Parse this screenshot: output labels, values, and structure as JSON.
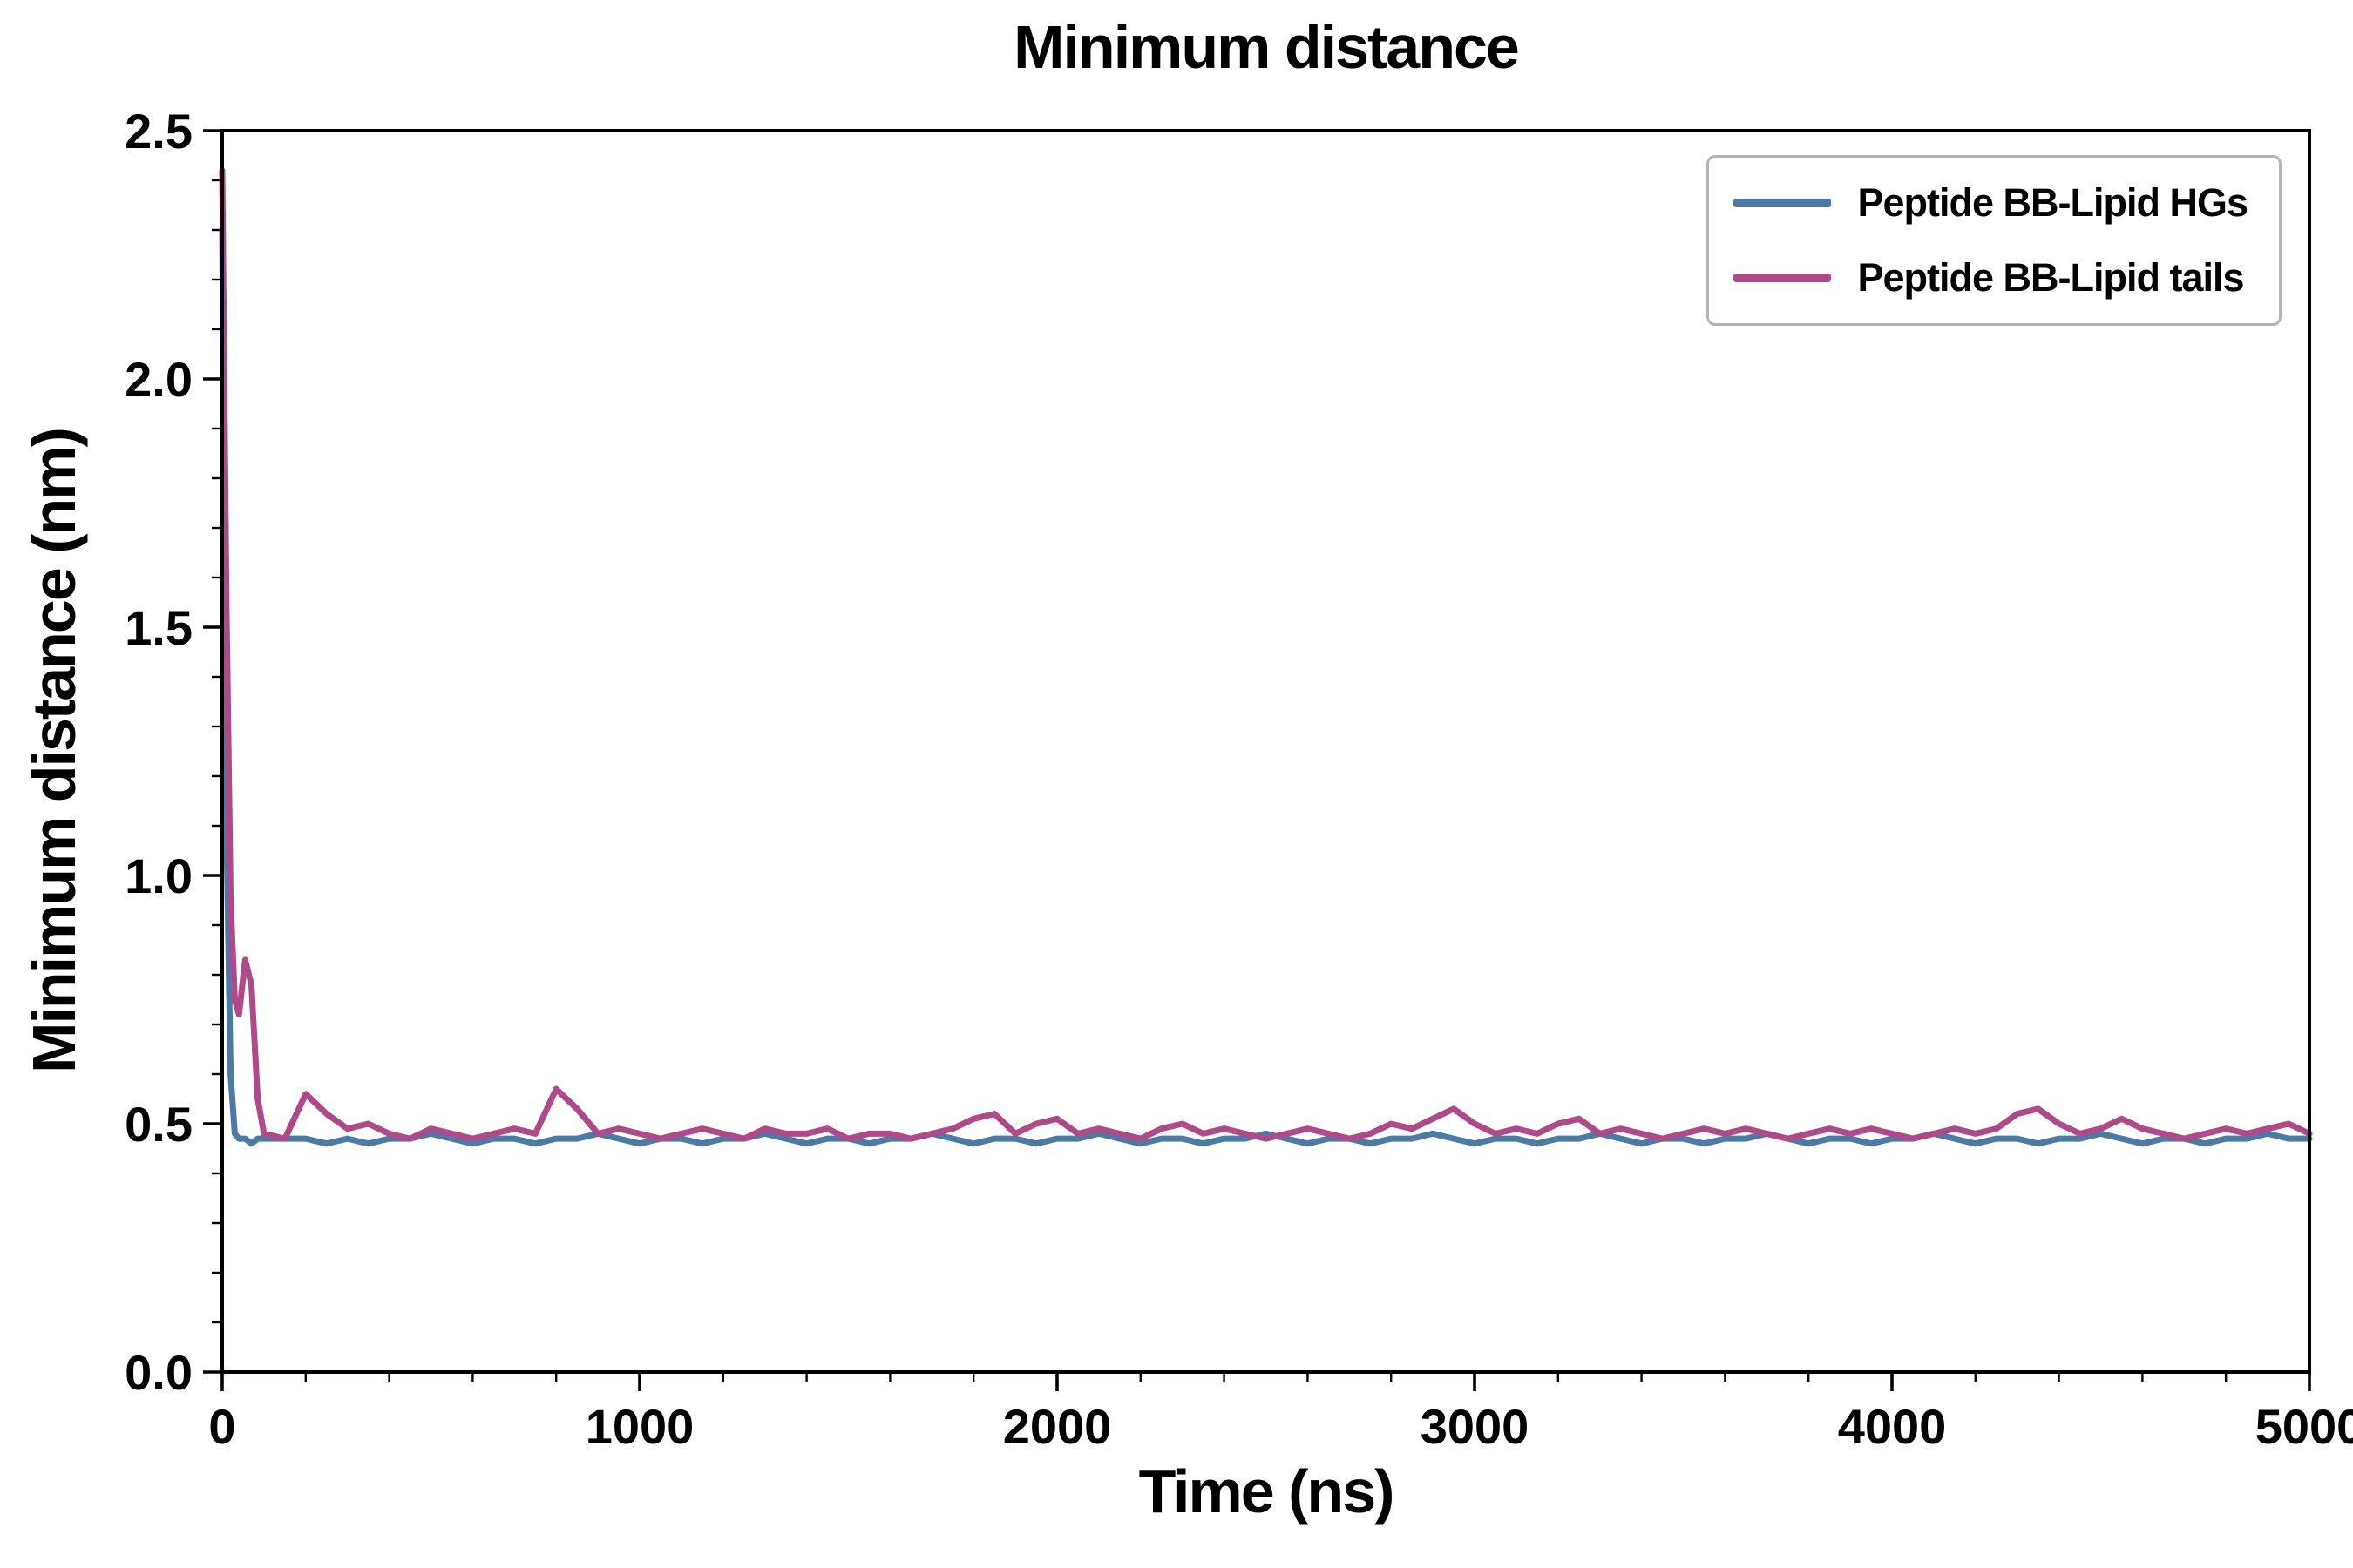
{
  "chart_data": {
    "type": "line",
    "title": "Minimum distance",
    "xlabel": "Time (ns)",
    "ylabel": "Minimum distance (nm)",
    "xlim": [
      0,
      5000
    ],
    "ylim": [
      0.0,
      2.5
    ],
    "xticks": [
      0,
      1000,
      2000,
      3000,
      4000,
      5000
    ],
    "xtick_labels": [
      "0",
      "1000",
      "2000",
      "3000",
      "4000",
      "5000"
    ],
    "x_minor_step": 200,
    "yticks": [
      0.0,
      0.5,
      1.0,
      1.5,
      2.0,
      2.5
    ],
    "ytick_labels": [
      "0.0",
      "0.5",
      "1.0",
      "1.5",
      "2.0",
      "2.5"
    ],
    "y_minor_step": 0.1,
    "grid": false,
    "legend": {
      "position": "upper right",
      "border_color": "#b5b5b5"
    },
    "x": [
      0,
      10,
      20,
      30,
      40,
      55,
      70,
      85,
      100,
      150,
      200,
      250,
      300,
      350,
      400,
      450,
      500,
      550,
      600,
      650,
      700,
      750,
      800,
      850,
      900,
      950,
      1000,
      1050,
      1100,
      1150,
      1200,
      1250,
      1300,
      1350,
      1400,
      1450,
      1500,
      1550,
      1600,
      1650,
      1700,
      1750,
      1800,
      1850,
      1900,
      1950,
      2000,
      2050,
      2100,
      2150,
      2200,
      2250,
      2300,
      2350,
      2400,
      2450,
      2500,
      2550,
      2600,
      2650,
      2700,
      2750,
      2800,
      2850,
      2900,
      2950,
      3000,
      3050,
      3100,
      3150,
      3200,
      3250,
      3300,
      3350,
      3400,
      3450,
      3500,
      3550,
      3600,
      3650,
      3700,
      3750,
      3800,
      3850,
      3900,
      3950,
      4000,
      4050,
      4100,
      4150,
      4200,
      4250,
      4300,
      4350,
      4400,
      4450,
      4500,
      4550,
      4600,
      4650,
      4700,
      4750,
      4800,
      4850,
      4900,
      4950,
      5000
    ],
    "series": [
      {
        "name": "Peptide BB-Lipid HGs",
        "color": "#4a7ba7",
        "values": [
          2.3,
          1.1,
          0.6,
          0.48,
          0.47,
          0.47,
          0.46,
          0.47,
          0.47,
          0.47,
          0.47,
          0.46,
          0.47,
          0.46,
          0.47,
          0.47,
          0.48,
          0.47,
          0.46,
          0.47,
          0.47,
          0.46,
          0.47,
          0.47,
          0.48,
          0.47,
          0.46,
          0.47,
          0.47,
          0.46,
          0.47,
          0.47,
          0.48,
          0.47,
          0.46,
          0.47,
          0.47,
          0.46,
          0.47,
          0.47,
          0.48,
          0.47,
          0.46,
          0.47,
          0.47,
          0.46,
          0.47,
          0.47,
          0.48,
          0.47,
          0.46,
          0.47,
          0.47,
          0.46,
          0.47,
          0.47,
          0.48,
          0.47,
          0.46,
          0.47,
          0.47,
          0.46,
          0.47,
          0.47,
          0.48,
          0.47,
          0.46,
          0.47,
          0.47,
          0.46,
          0.47,
          0.47,
          0.48,
          0.47,
          0.46,
          0.47,
          0.47,
          0.46,
          0.47,
          0.47,
          0.48,
          0.47,
          0.46,
          0.47,
          0.47,
          0.46,
          0.47,
          0.47,
          0.48,
          0.47,
          0.46,
          0.47,
          0.47,
          0.46,
          0.47,
          0.47,
          0.48,
          0.47,
          0.46,
          0.47,
          0.47,
          0.46,
          0.47,
          0.47,
          0.48,
          0.47,
          0.47
        ]
      },
      {
        "name": "Peptide BB-Lipid tails",
        "color": "#b04987",
        "values": [
          2.42,
          1.55,
          0.95,
          0.75,
          0.72,
          0.83,
          0.78,
          0.55,
          0.48,
          0.47,
          0.56,
          0.52,
          0.49,
          0.5,
          0.48,
          0.47,
          0.49,
          0.48,
          0.47,
          0.48,
          0.49,
          0.48,
          0.57,
          0.53,
          0.48,
          0.49,
          0.48,
          0.47,
          0.48,
          0.49,
          0.48,
          0.47,
          0.49,
          0.48,
          0.48,
          0.49,
          0.47,
          0.48,
          0.48,
          0.47,
          0.48,
          0.49,
          0.51,
          0.52,
          0.48,
          0.5,
          0.51,
          0.48,
          0.49,
          0.48,
          0.47,
          0.49,
          0.5,
          0.48,
          0.49,
          0.48,
          0.47,
          0.48,
          0.49,
          0.48,
          0.47,
          0.48,
          0.5,
          0.49,
          0.51,
          0.53,
          0.5,
          0.48,
          0.49,
          0.48,
          0.5,
          0.51,
          0.48,
          0.49,
          0.48,
          0.47,
          0.48,
          0.49,
          0.48,
          0.49,
          0.48,
          0.47,
          0.48,
          0.49,
          0.48,
          0.49,
          0.48,
          0.47,
          0.48,
          0.49,
          0.48,
          0.49,
          0.52,
          0.53,
          0.5,
          0.48,
          0.49,
          0.51,
          0.49,
          0.48,
          0.47,
          0.48,
          0.49,
          0.48,
          0.49,
          0.5,
          0.48
        ]
      }
    ]
  }
}
